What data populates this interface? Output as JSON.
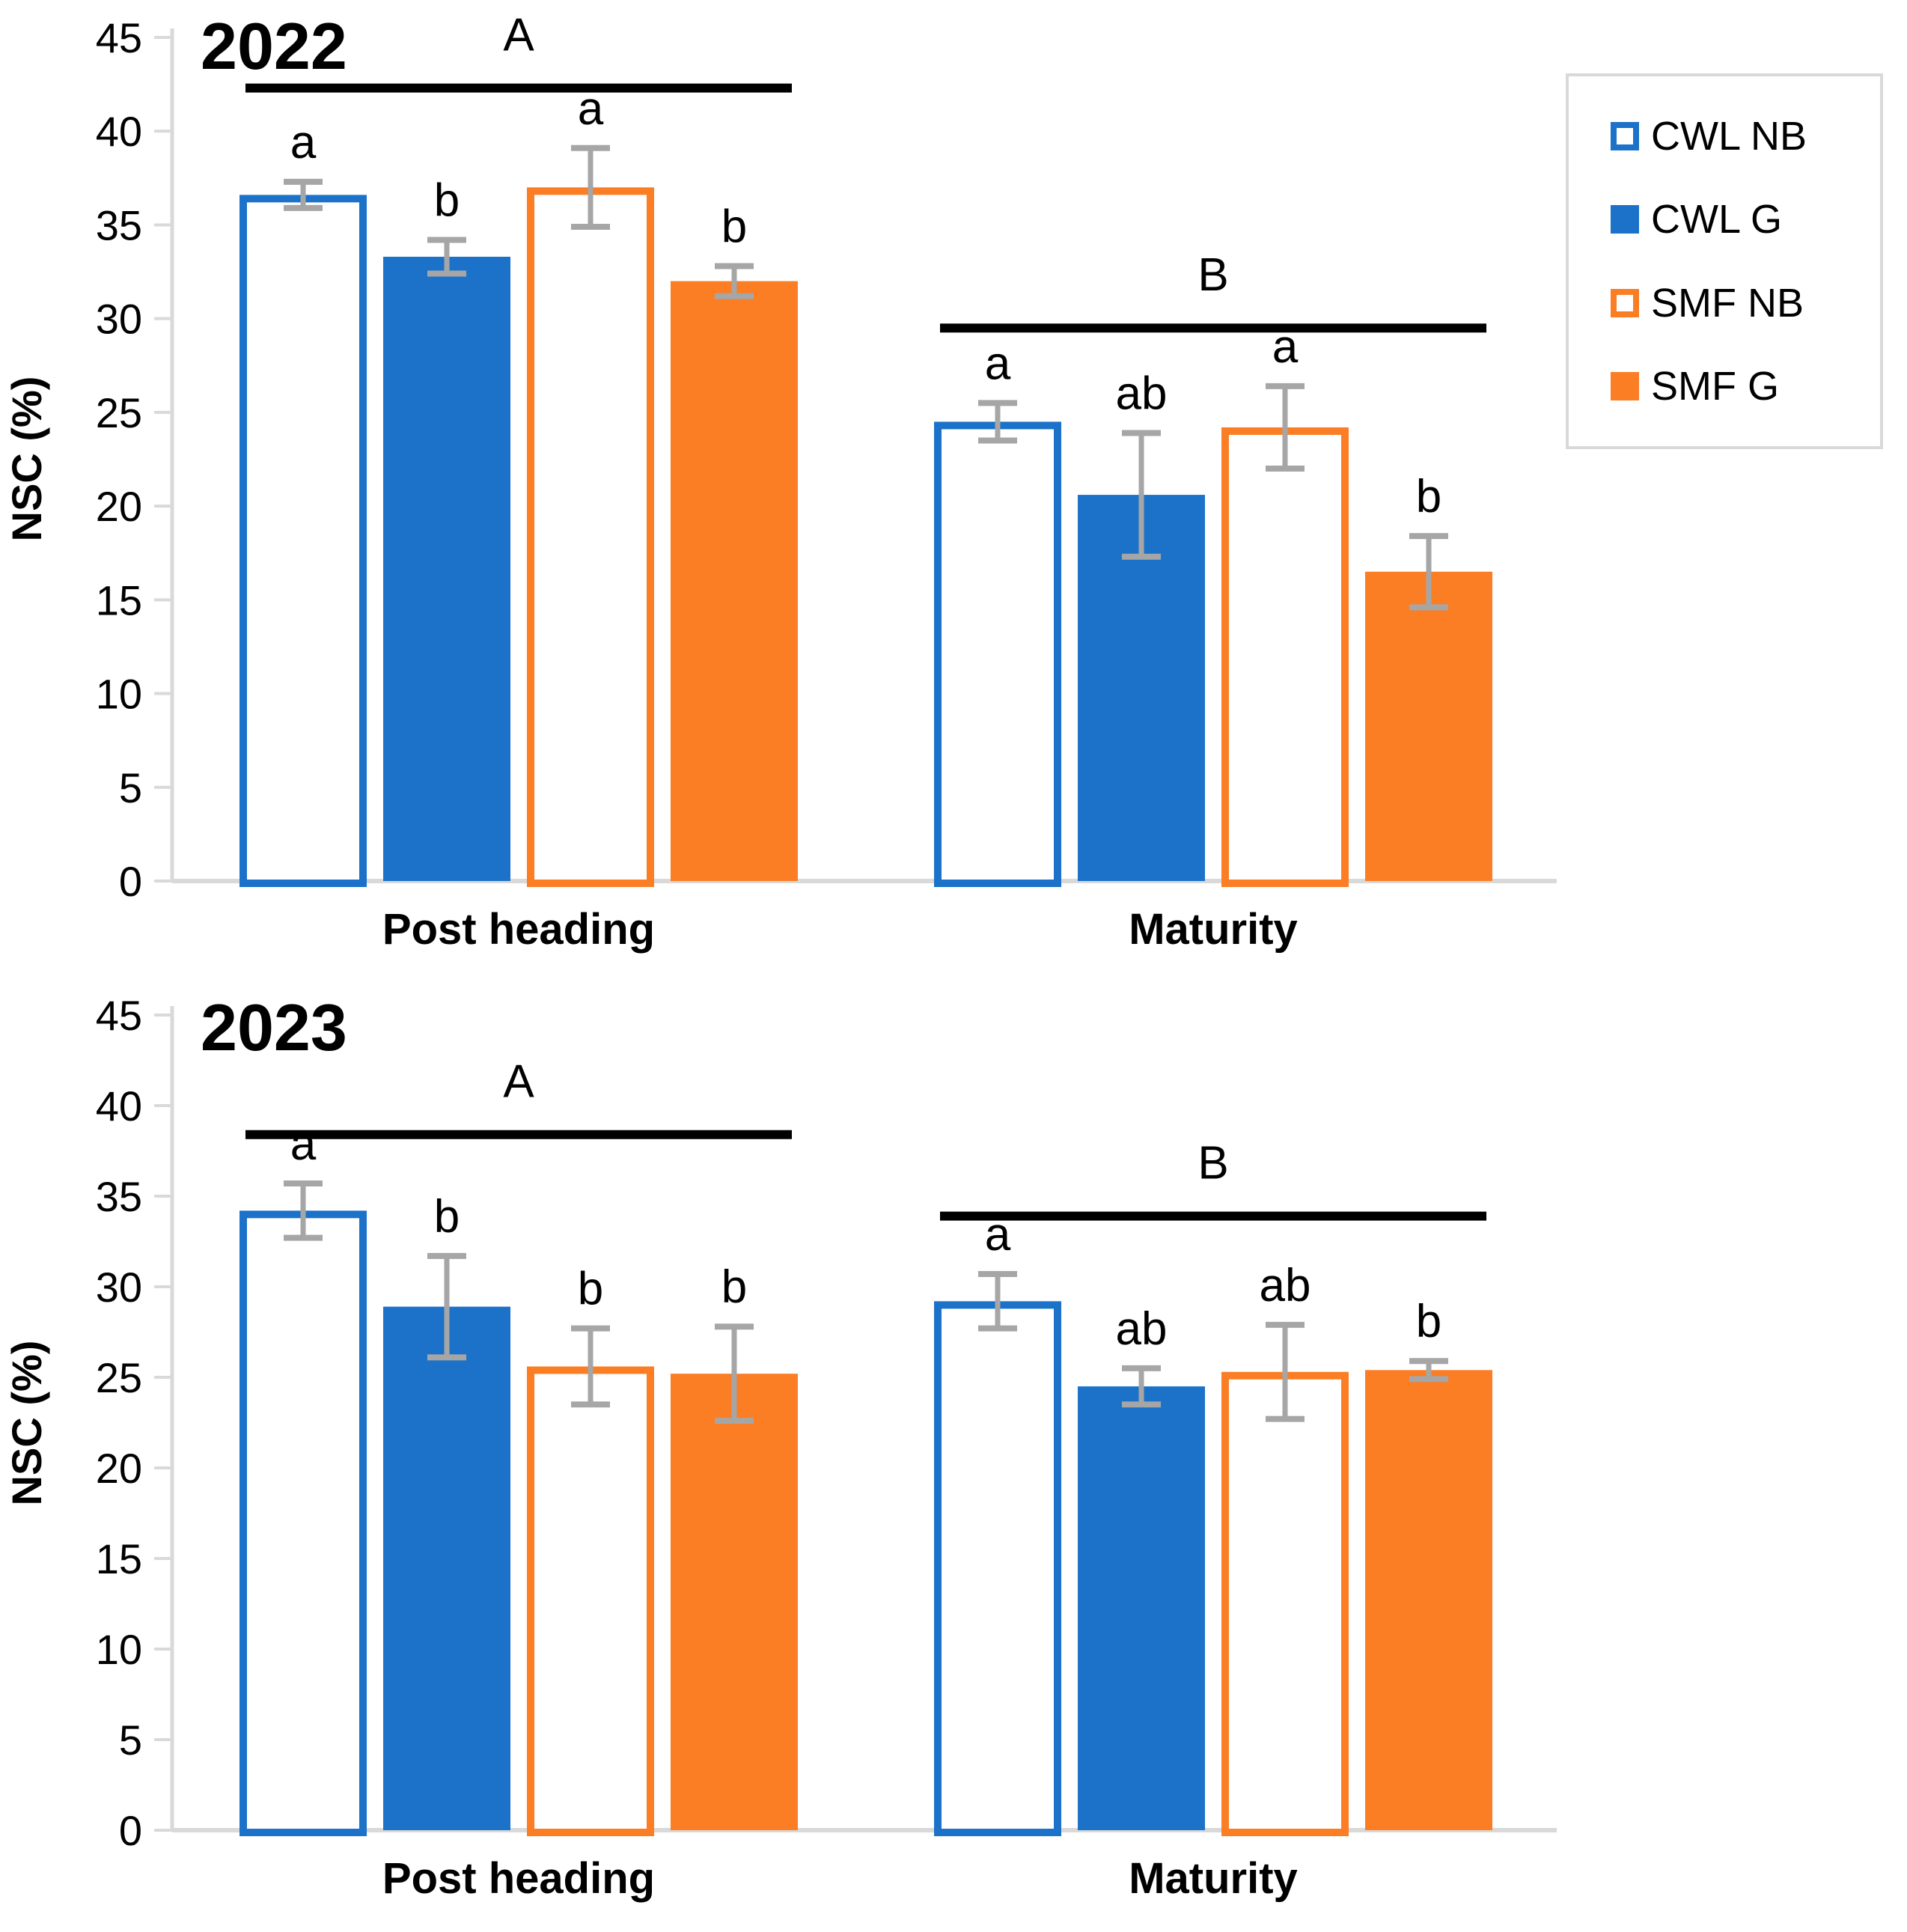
{
  "page": {
    "background": "#ffffff"
  },
  "colors": {
    "blue": "#1b72c8",
    "orange": "#fb7d24",
    "error_bar": "#a6a6a6",
    "axis": "#d9d9d9",
    "annotation_line": "#000000"
  },
  "legend": {
    "items": [
      {
        "label": "CWL NB",
        "color": "#1b72c8",
        "fill": false
      },
      {
        "label": "CWL G",
        "color": "#1b72c8",
        "fill": true
      },
      {
        "label": "SMF NB",
        "color": "#fb7d24",
        "fill": false
      },
      {
        "label": "SMF G",
        "color": "#fb7d24",
        "fill": true
      }
    ],
    "position": "outside-top-right"
  },
  "chart_data": [
    {
      "type": "bar",
      "title": "2022",
      "xlabel": "",
      "ylabel": "NSC (%)",
      "ylim": [
        0,
        45
      ],
      "yticks": [
        0,
        5,
        10,
        15,
        20,
        25,
        30,
        35,
        40,
        45
      ],
      "grid": false,
      "categories": [
        "Post heading",
        "Maturity"
      ],
      "series": [
        {
          "name": "CWL NB",
          "style": "outline",
          "color": "#1b72c8",
          "values": [
            36.6,
            24.5
          ],
          "errors": [
            0.7,
            1.0
          ],
          "letters": [
            "a",
            "a"
          ]
        },
        {
          "name": "CWL G",
          "style": "solid",
          "color": "#1b72c8",
          "values": [
            33.3,
            20.6
          ],
          "errors": [
            0.9,
            3.3
          ],
          "letters": [
            "b",
            "ab"
          ]
        },
        {
          "name": "SMF NB",
          "style": "outline",
          "color": "#fb7d24",
          "values": [
            37.0,
            24.2
          ],
          "errors": [
            2.1,
            2.2
          ],
          "letters": [
            "a",
            "a"
          ]
        },
        {
          "name": "SMF G",
          "style": "solid",
          "color": "#fb7d24",
          "values": [
            32.0,
            16.5
          ],
          "errors": [
            0.8,
            1.9
          ],
          "letters": [
            "b",
            "b"
          ]
        }
      ],
      "group_annotations": [
        {
          "label": "A",
          "category_index": 0,
          "y_value": 42.3
        },
        {
          "label": "B",
          "category_index": 1,
          "y_value": 29.5
        }
      ]
    },
    {
      "type": "bar",
      "title": "2023",
      "xlabel": "",
      "ylabel": "NSC (%)",
      "ylim": [
        0,
        45
      ],
      "yticks": [
        0,
        5,
        10,
        15,
        20,
        25,
        30,
        35,
        40,
        45
      ],
      "grid": false,
      "categories": [
        "Post heading",
        "Maturity"
      ],
      "series": [
        {
          "name": "CWL NB",
          "style": "outline",
          "color": "#1b72c8",
          "values": [
            34.2,
            29.2
          ],
          "errors": [
            1.5,
            1.5
          ],
          "letters": [
            "a",
            "a"
          ]
        },
        {
          "name": "CWL G",
          "style": "solid",
          "color": "#1b72c8",
          "values": [
            28.9,
            24.5
          ],
          "errors": [
            2.8,
            1.0
          ],
          "letters": [
            "b",
            "ab"
          ]
        },
        {
          "name": "SMF NB",
          "style": "outline",
          "color": "#fb7d24",
          "values": [
            25.6,
            25.3
          ],
          "errors": [
            2.1,
            2.6
          ],
          "letters": [
            "b",
            "ab"
          ]
        },
        {
          "name": "SMF G",
          "style": "solid",
          "color": "#fb7d24",
          "values": [
            25.2,
            25.4
          ],
          "errors": [
            2.6,
            0.5
          ],
          "letters": [
            "b",
            "b"
          ]
        }
      ],
      "group_annotations": [
        {
          "label": "A",
          "category_index": 0,
          "y_value": 38.4
        },
        {
          "label": "B",
          "category_index": 1,
          "y_value": 33.9
        }
      ]
    }
  ]
}
